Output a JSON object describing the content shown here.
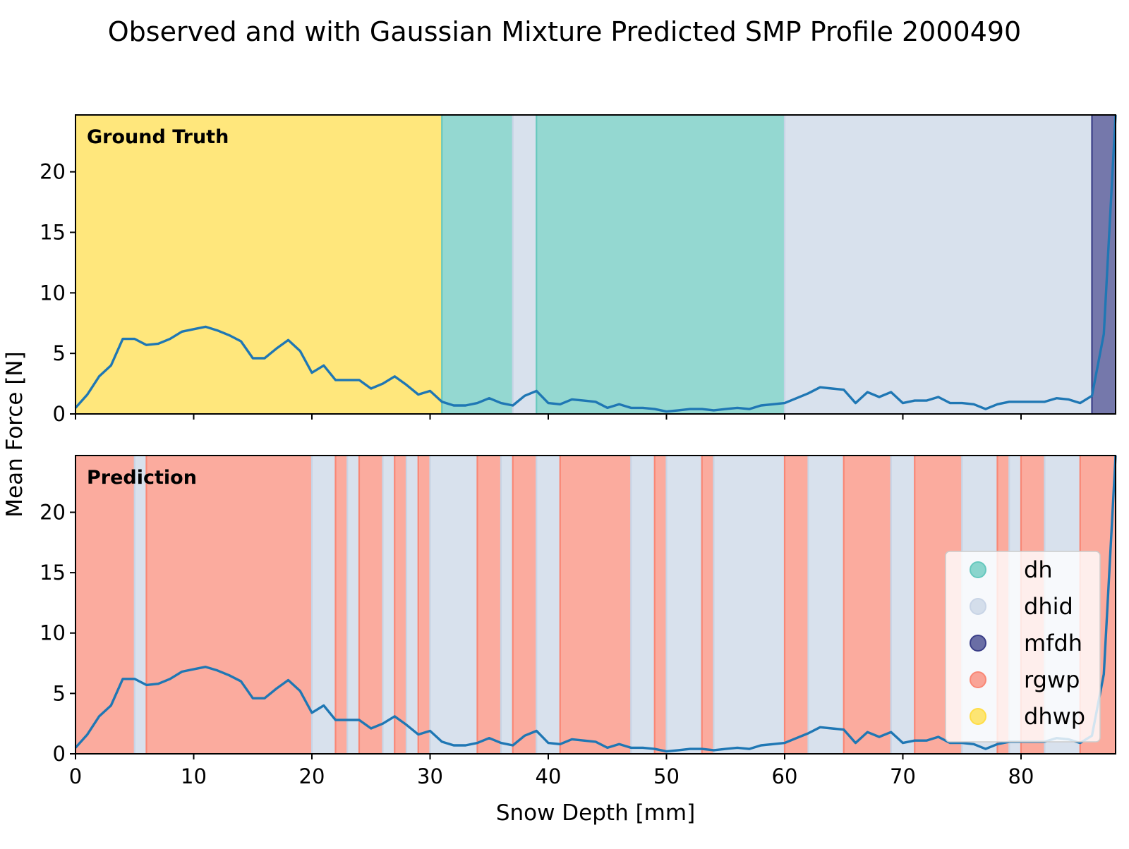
{
  "chart_data": {
    "type": "line",
    "title": "Observed and with Gaussian Mixture Predicted SMP Profile 2000490",
    "xlabel": "Snow Depth [mm]",
    "ylabel": "Mean Force [N]",
    "xlim": [
      0,
      88
    ],
    "ylim": [
      0,
      24.7
    ],
    "xticks": [
      0,
      10,
      20,
      30,
      40,
      50,
      60,
      70,
      80
    ],
    "yticks": [
      0,
      5,
      10,
      15,
      20
    ],
    "legend_position": "lower-right",
    "classes": [
      {
        "name": "dh",
        "color": "#66c8be"
      },
      {
        "name": "dhid",
        "color": "#c8d4e6"
      },
      {
        "name": "mfdh",
        "color": "#3b3f88"
      },
      {
        "name": "rgwp",
        "color": "#f98775"
      },
      {
        "name": "dhwp",
        "color": "#ffdd45"
      }
    ],
    "series": [
      {
        "x": [
          0,
          1,
          2,
          3,
          4,
          5,
          6,
          7,
          8,
          9,
          10,
          11,
          12,
          13,
          14,
          15,
          16,
          17,
          18,
          19,
          20,
          21,
          22,
          23,
          24,
          25,
          26,
          27,
          28,
          29,
          30,
          31,
          32,
          33,
          34,
          35,
          36,
          37,
          38,
          39,
          40,
          41,
          42,
          43,
          44,
          45,
          46,
          47,
          48,
          49,
          50,
          51,
          52,
          53,
          54,
          55,
          56,
          57,
          58,
          59,
          60,
          61,
          62,
          63,
          64,
          65,
          66,
          67,
          68,
          69,
          70,
          71,
          72,
          73,
          74,
          75,
          76,
          77,
          78,
          79,
          80,
          81,
          82,
          83,
          84,
          85,
          86,
          87,
          88
        ],
        "values": [
          0.5,
          1.6,
          3.1,
          4.0,
          6.2,
          6.2,
          5.7,
          5.8,
          6.2,
          6.8,
          7.0,
          7.2,
          6.9,
          6.5,
          6.0,
          4.6,
          4.6,
          5.4,
          6.1,
          5.2,
          3.4,
          4.0,
          2.8,
          2.8,
          2.8,
          2.1,
          2.5,
          3.1,
          2.4,
          1.6,
          1.9,
          1.0,
          0.7,
          0.7,
          0.9,
          1.3,
          0.9,
          0.7,
          1.5,
          1.9,
          0.9,
          0.8,
          1.2,
          1.1,
          1.0,
          0.5,
          0.8,
          0.5,
          0.5,
          0.4,
          0.2,
          0.3,
          0.4,
          0.4,
          0.3,
          0.4,
          0.5,
          0.4,
          0.7,
          0.8,
          0.9,
          1.3,
          1.7,
          2.2,
          2.1,
          2.0,
          0.9,
          1.8,
          1.4,
          1.8,
          0.9,
          1.1,
          1.1,
          1.4,
          0.9,
          0.9,
          0.8,
          0.4,
          0.8,
          1.0,
          1.0,
          1.0,
          1.0,
          1.3,
          1.2,
          0.9,
          1.5,
          6.6,
          24.7
        ]
      }
    ],
    "panels": [
      {
        "label": "Ground Truth",
        "segments": [
          {
            "from": 0,
            "to": 31,
            "class": "dhwp"
          },
          {
            "from": 31,
            "to": 37,
            "class": "dh"
          },
          {
            "from": 37,
            "to": 39,
            "class": "dhid"
          },
          {
            "from": 39,
            "to": 60,
            "class": "dh"
          },
          {
            "from": 60,
            "to": 86,
            "class": "dhid"
          },
          {
            "from": 86,
            "to": 88,
            "class": "mfdh"
          }
        ]
      },
      {
        "label": "Prediction",
        "segments": [
          {
            "from": 0,
            "to": 5,
            "class": "rgwp"
          },
          {
            "from": 5,
            "to": 6,
            "class": "dhid"
          },
          {
            "from": 6,
            "to": 20,
            "class": "rgwp"
          },
          {
            "from": 20,
            "to": 22,
            "class": "dhid"
          },
          {
            "from": 22,
            "to": 23,
            "class": "rgwp"
          },
          {
            "from": 23,
            "to": 24,
            "class": "dhid"
          },
          {
            "from": 24,
            "to": 26,
            "class": "rgwp"
          },
          {
            "from": 26,
            "to": 27,
            "class": "dhid"
          },
          {
            "from": 27,
            "to": 28,
            "class": "rgwp"
          },
          {
            "from": 28,
            "to": 29,
            "class": "dhid"
          },
          {
            "from": 29,
            "to": 30,
            "class": "rgwp"
          },
          {
            "from": 30,
            "to": 34,
            "class": "dhid"
          },
          {
            "from": 34,
            "to": 36,
            "class": "rgwp"
          },
          {
            "from": 36,
            "to": 37,
            "class": "dhid"
          },
          {
            "from": 37,
            "to": 39,
            "class": "rgwp"
          },
          {
            "from": 39,
            "to": 41,
            "class": "dhid"
          },
          {
            "from": 41,
            "to": 47,
            "class": "rgwp"
          },
          {
            "from": 47,
            "to": 49,
            "class": "dhid"
          },
          {
            "from": 49,
            "to": 50,
            "class": "rgwp"
          },
          {
            "from": 50,
            "to": 53,
            "class": "dhid"
          },
          {
            "from": 53,
            "to": 54,
            "class": "rgwp"
          },
          {
            "from": 54,
            "to": 60,
            "class": "dhid"
          },
          {
            "from": 60,
            "to": 62,
            "class": "rgwp"
          },
          {
            "from": 62,
            "to": 65,
            "class": "dhid"
          },
          {
            "from": 65,
            "to": 69,
            "class": "rgwp"
          },
          {
            "from": 69,
            "to": 71,
            "class": "dhid"
          },
          {
            "from": 71,
            "to": 75,
            "class": "rgwp"
          },
          {
            "from": 75,
            "to": 78,
            "class": "dhid"
          },
          {
            "from": 78,
            "to": 79,
            "class": "rgwp"
          },
          {
            "from": 79,
            "to": 80,
            "class": "dhid"
          },
          {
            "from": 80,
            "to": 82,
            "class": "rgwp"
          },
          {
            "from": 82,
            "to": 85,
            "class": "dhid"
          },
          {
            "from": 85,
            "to": 88,
            "class": "rgwp"
          }
        ]
      }
    ]
  }
}
